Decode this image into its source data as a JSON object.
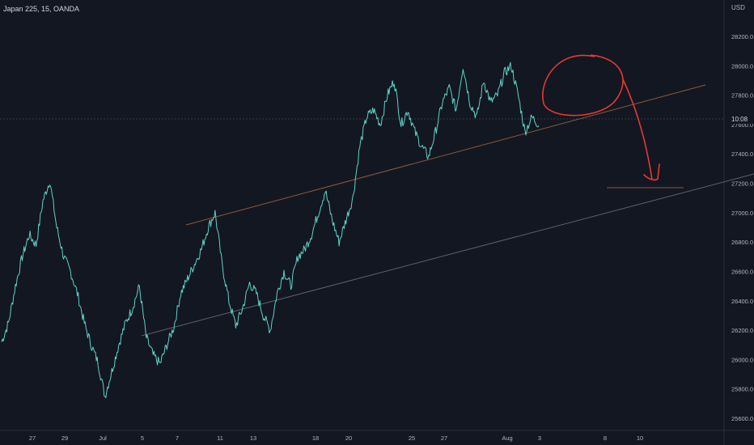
{
  "header": {
    "symbol_line": "Japan 225, 15, OANDA",
    "currency": "USD"
  },
  "chart_data": {
    "type": "line",
    "title": "Japan 225, 15, OANDA",
    "xlabel": "",
    "ylabel": "",
    "ylim": [
      25500,
      28400
    ],
    "y_ticks": [
      28200,
      28000,
      27800,
      27600,
      27400,
      27200,
      27000,
      26800,
      26600,
      26400,
      26200,
      26000,
      25800,
      25600
    ],
    "y_tick_labels": [
      "28200.0",
      "28000.0",
      "27800.0",
      "27600.0",
      "27400.0",
      "27200.0",
      "27000.0",
      "26800.0",
      "26600.0",
      "26400.0",
      "26200.0",
      "26000.0",
      "25800.0",
      "25600.0"
    ],
    "x_tick_labels": [
      "27",
      "29",
      "Jul",
      "5",
      "7",
      "11",
      "13",
      "18",
      "20",
      "25",
      "27",
      "Aug",
      "3",
      "8",
      "10"
    ],
    "current_price_label": "10:08",
    "series": [
      {
        "values": [
          26120,
          26250,
          26500,
          26700,
          26850,
          26780,
          27080,
          27220,
          26900,
          26700,
          26600,
          26450,
          26250,
          26100,
          25980,
          25750,
          25920,
          26100,
          26250,
          26350,
          26500,
          26150,
          26030,
          25970,
          26100,
          26220,
          26450,
          26550,
          26650,
          26750,
          26900,
          27000,
          26650,
          26400,
          26230,
          26350,
          26520,
          26450,
          26300,
          26200,
          26450,
          26600,
          26500,
          26700,
          26750,
          26850,
          27000,
          27150,
          26950,
          26800,
          26950,
          27100,
          27450,
          27650,
          27700,
          27600,
          27800,
          27900,
          27600,
          27700,
          27550,
          27450,
          27380,
          27550,
          27750,
          27850,
          27700,
          28000,
          27750,
          27650,
          27900,
          27750,
          27800,
          27950,
          28000,
          27800,
          27550,
          27650,
          27600
        ],
        "color": "#5ed3c6"
      }
    ],
    "annotations": {
      "upper_channel_line": {
        "from": [
          "Jul 7",
          26920
        ],
        "to": [
          "Aug 11",
          27880
        ],
        "color": "#8a5a3c"
      },
      "lower_channel_line": {
        "from": [
          "Jul 3",
          26180
        ],
        "to": [
          "Aug 12",
          27230
        ],
        "color": "#5d6170"
      },
      "target_level_line": {
        "price": 27170,
        "color": "#8a5a3c"
      },
      "hand_drawn_circle": {
        "color": "#e53935"
      },
      "hand_drawn_arrow": {
        "color": "#e53935"
      }
    },
    "grid": false,
    "price_axis": "right"
  }
}
